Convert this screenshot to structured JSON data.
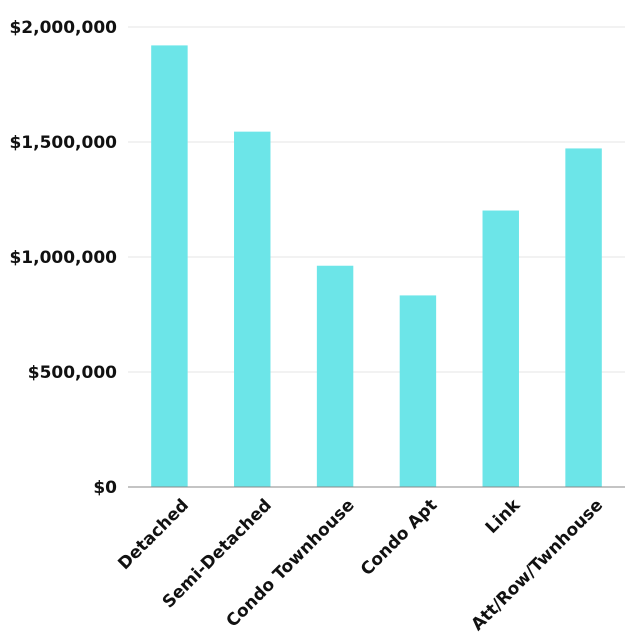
{
  "chart_data": {
    "type": "bar",
    "title": "",
    "xlabel": "",
    "ylabel": "",
    "categories": [
      "Detached",
      "Semi-Detached",
      "Condo Townhouse",
      "Condo Apt",
      "Link",
      "Att/Row/Twnhouse"
    ],
    "values": [
      1920000,
      1545000,
      962000,
      833000,
      1202000,
      1472000
    ],
    "ylim": [
      0,
      2000000
    ],
    "yticks": [
      0,
      500000,
      1000000,
      1500000,
      2000000
    ],
    "ytick_labels": [
      "$0",
      "$500,000",
      "$1,000,000",
      "$1,500,000",
      "$2,000,000"
    ],
    "grid": true,
    "bar_color": "#6ce5e8"
  }
}
